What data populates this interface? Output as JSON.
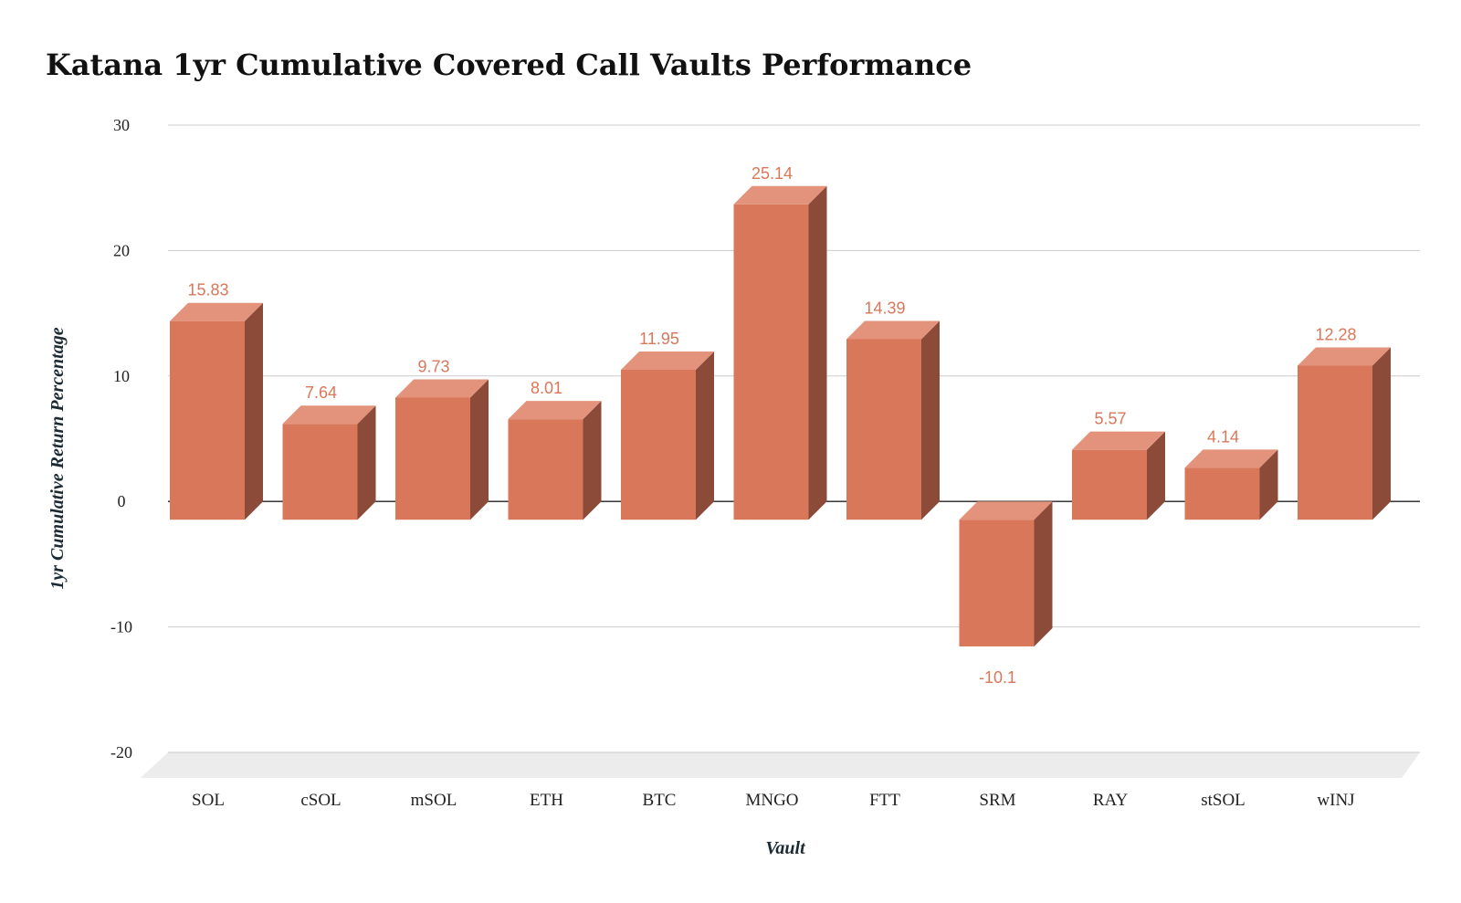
{
  "chart_data": {
    "type": "bar",
    "title": "Katana 1yr Cumulative Covered Call Vaults Performance",
    "xlabel": "Vault",
    "ylabel": "1yr Cumulative Return Percentage",
    "categories": [
      "SOL",
      "cSOL",
      "mSOL",
      "ETH",
      "BTC",
      "MNGO",
      "FTT",
      "SRM",
      "RAY",
      "stSOL",
      "wINJ"
    ],
    "values": [
      15.83,
      7.64,
      9.73,
      8.01,
      11.95,
      25.14,
      14.39,
      -10.1,
      5.57,
      4.14,
      12.28
    ],
    "data_labels": [
      "15.83",
      "7.64",
      "9.73",
      "8.01",
      "11.95",
      "25.14",
      "14.39",
      "-10.1",
      "5.57",
      "4.14",
      "12.28"
    ],
    "ylim": [
      -20,
      30
    ],
    "yticks": [
      30,
      20,
      10,
      0,
      -10,
      -20
    ],
    "grid": true,
    "style": "3d-bar"
  },
  "colors": {
    "bar_front": "#d9775a",
    "bar_top": "#e3927b",
    "bar_side": "#8c4a39",
    "label": "#d9775a",
    "grid": "#cccccc",
    "floor": "#ececec"
  }
}
